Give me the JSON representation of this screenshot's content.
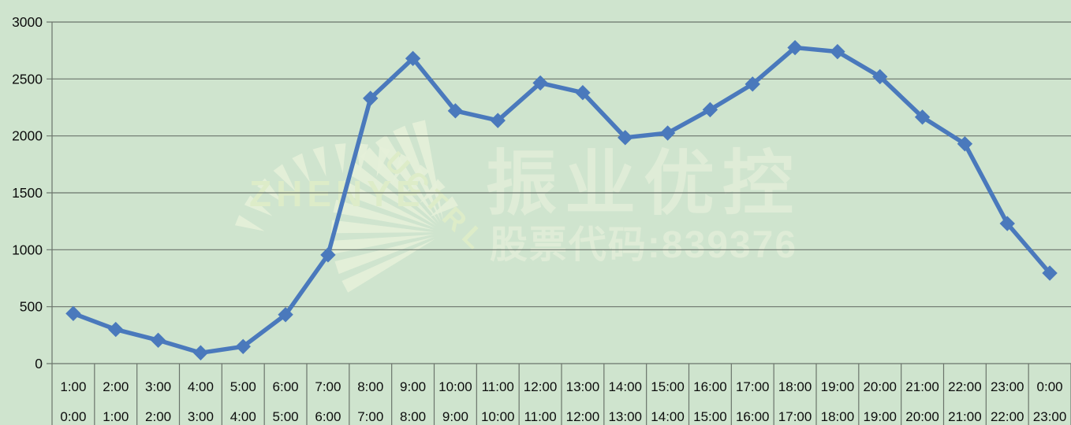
{
  "watermark": {
    "brand": "振业优控",
    "stock_code": "股票代码:839376",
    "logo_top": "ZHENYE",
    "logo_arc": "UCTRL"
  },
  "colors": {
    "background": "#cfe4ce",
    "gridline": "#6b746b",
    "axis_label": "#0d0d0d",
    "line": "#4a79bc",
    "watermark_shape": "#e4efd9",
    "watermark_text": "#dfecd7",
    "watermark_logo_text": "#ddecc8"
  },
  "chart_data": {
    "type": "line",
    "title": "",
    "legend": "none",
    "grid": "horizontal",
    "marker": "diamond",
    "ylim": [
      0,
      3000
    ],
    "ytick_labels": [
      "0",
      "500",
      "1000",
      "1500",
      "2000",
      "2500",
      "3000"
    ],
    "x_labels_top": [
      "1:00",
      "2:00",
      "3:00",
      "4:00",
      "5:00",
      "6:00",
      "7:00",
      "8:00",
      "9:00",
      "10:00",
      "11:00",
      "12:00",
      "13:00",
      "14:00",
      "15:00",
      "16:00",
      "17:00",
      "18:00",
      "19:00",
      "20:00",
      "21:00",
      "22:00",
      "23:00",
      "0:00"
    ],
    "x_labels_bottom": [
      "0:00",
      "1:00",
      "2:00",
      "3:00",
      "4:00",
      "5:00",
      "6:00",
      "7:00",
      "8:00",
      "9:00",
      "10:00",
      "11:00",
      "12:00",
      "13:00",
      "14:00",
      "15:00",
      "16:00",
      "17:00",
      "18:00",
      "19:00",
      "20:00",
      "21:00",
      "22:00",
      "23:00"
    ],
    "values": [
      440,
      300,
      205,
      95,
      150,
      430,
      955,
      2330,
      2680,
      2220,
      2135,
      2465,
      2380,
      1985,
      2025,
      2230,
      2455,
      2775,
      2740,
      2520,
      2165,
      1930,
      1230,
      795
    ]
  }
}
